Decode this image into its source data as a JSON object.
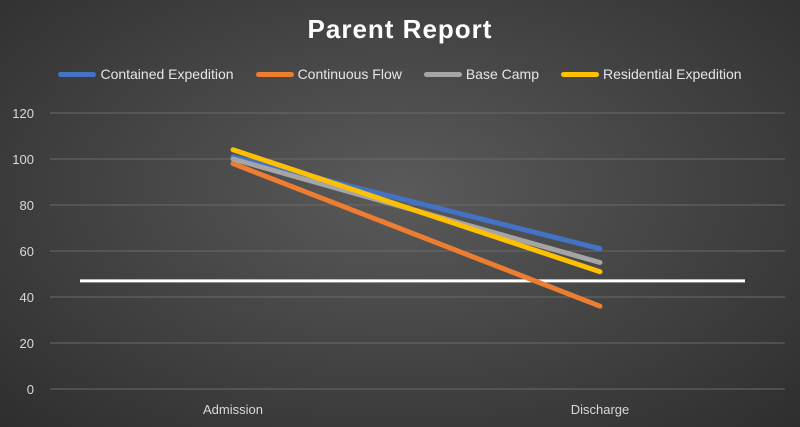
{
  "chart_data": {
    "type": "line",
    "title": "Parent Report",
    "xlabel": "",
    "ylabel": "",
    "categories": [
      "Admission",
      "Discharge"
    ],
    "ylim": [
      0,
      120
    ],
    "yticks": [
      0,
      20,
      40,
      60,
      80,
      100,
      120
    ],
    "grid": true,
    "legend_position": "top",
    "series": [
      {
        "name": "Contained Expedition",
        "values": [
          101,
          61
        ],
        "color": "#4472c4"
      },
      {
        "name": "Continuous Flow",
        "values": [
          98,
          36
        ],
        "color": "#ed7d31"
      },
      {
        "name": "Base Camp",
        "values": [
          100,
          55
        ],
        "color": "#a5a5a5"
      },
      {
        "name": "Residential Expedition",
        "values": [
          104,
          51
        ],
        "color": "#ffc000"
      }
    ],
    "reference_line": {
      "value": 47,
      "color": "#ffffff"
    }
  }
}
